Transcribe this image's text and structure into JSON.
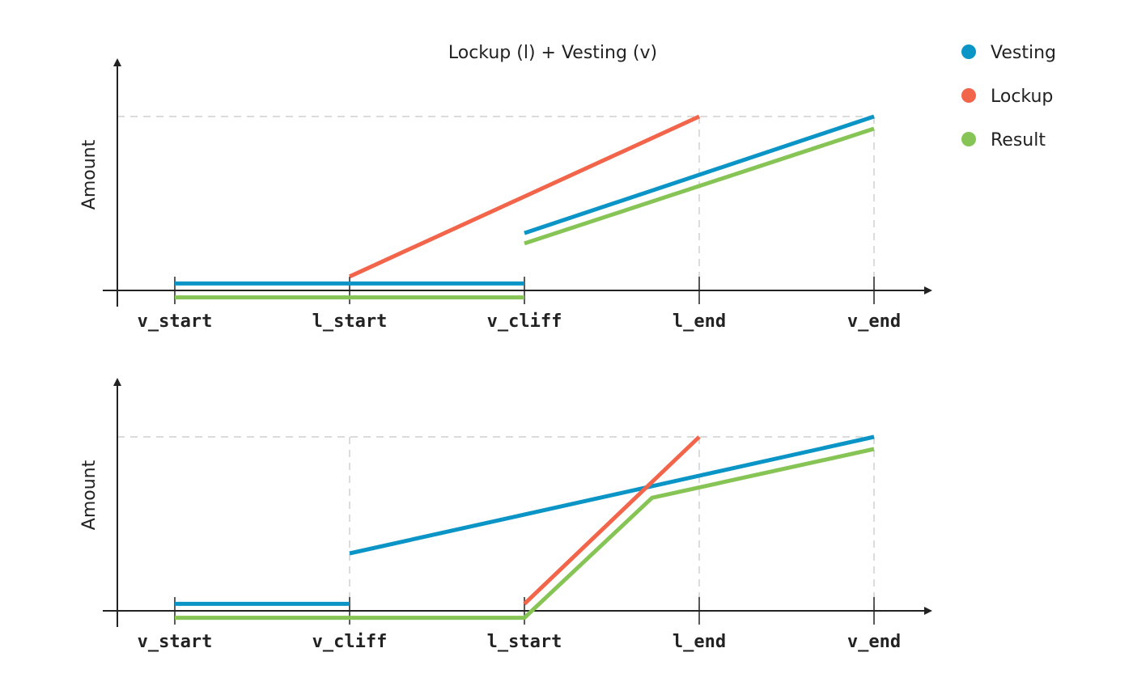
{
  "title": "Lockup (l) + Vesting (v)",
  "colors": {
    "vesting": "#0a95c6",
    "lockup": "#f2654a",
    "result": "#86c555",
    "axis": "#222222",
    "guide": "#cfcfcf"
  },
  "legend": [
    {
      "label": "Vesting",
      "color": "#0a95c6"
    },
    {
      "label": "Lockup",
      "color": "#f2654a"
    },
    {
      "label": "Result",
      "color": "#86c555"
    }
  ],
  "chart_data": [
    {
      "type": "line",
      "ylabel": "Amount",
      "categories": [
        "v_start",
        "l_start",
        "v_cliff",
        "l_end",
        "v_end"
      ],
      "xlim": [
        0,
        4
      ],
      "ylim": [
        0,
        100
      ],
      "guides_y": [
        100
      ],
      "guides_x": [
        3,
        4
      ],
      "series": [
        {
          "key": "vesting",
          "name": "Vesting",
          "segments": [
            [
              [
                0,
                4
              ],
              [
                2,
                4
              ]
            ],
            [
              [
                2,
                33
              ],
              [
                4,
                100
              ]
            ]
          ]
        },
        {
          "key": "lockup",
          "name": "Lockup",
          "segments": [
            [
              [
                1,
                8
              ],
              [
                3,
                100
              ]
            ]
          ]
        },
        {
          "key": "result",
          "name": "Result",
          "segments": [
            [
              [
                0,
                -4
              ],
              [
                2,
                -4
              ]
            ],
            [
              [
                2,
                27
              ],
              [
                4,
                93
              ]
            ]
          ]
        }
      ]
    },
    {
      "type": "line",
      "ylabel": "Amount",
      "categories": [
        "v_start",
        "v_cliff",
        "l_start",
        "l_end",
        "v_end"
      ],
      "xlim": [
        0,
        4
      ],
      "ylim": [
        0,
        100
      ],
      "guides_y": [
        100
      ],
      "guides_x": [
        1,
        3,
        4
      ],
      "series": [
        {
          "key": "vesting",
          "name": "Vesting",
          "segments": [
            [
              [
                0,
                4
              ],
              [
                1,
                4
              ]
            ],
            [
              [
                1,
                33
              ],
              [
                4,
                100
              ]
            ]
          ]
        },
        {
          "key": "lockup",
          "name": "Lockup",
          "segments": [
            [
              [
                2,
                4
              ],
              [
                3,
                100
              ]
            ]
          ]
        },
        {
          "key": "result",
          "name": "Result",
          "segments": [
            [
              [
                0,
                -4
              ],
              [
                2,
                -4
              ],
              [
                2.73,
                65
              ],
              [
                4,
                93
              ]
            ]
          ]
        }
      ]
    }
  ]
}
